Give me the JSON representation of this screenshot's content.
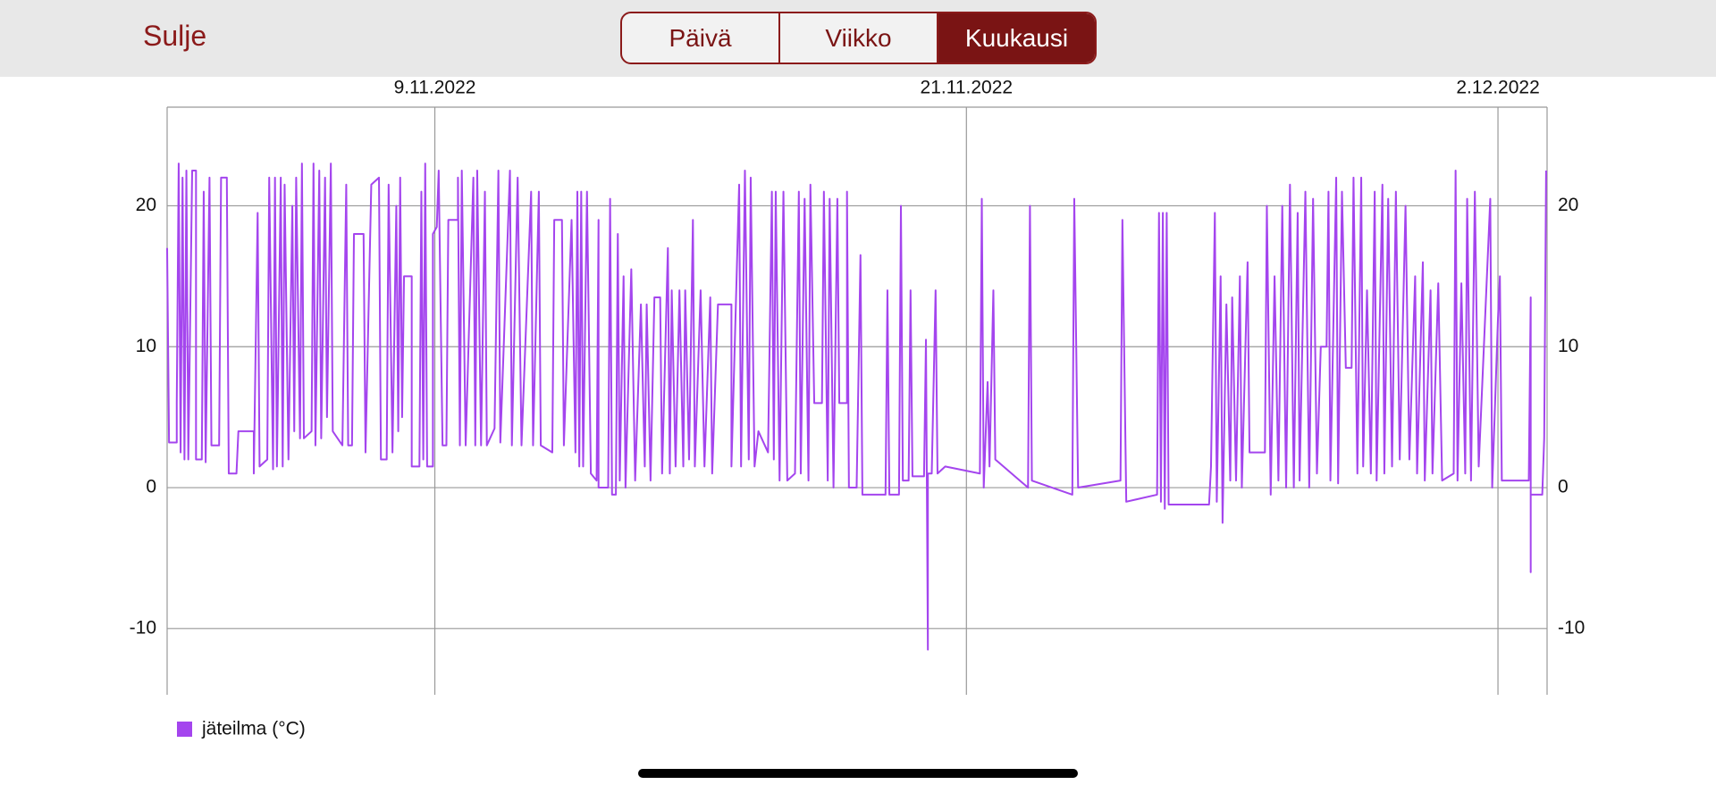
{
  "header": {
    "close": "Sulje",
    "tabs": [
      "Päivä",
      "Viikko",
      "Kuukausi"
    ],
    "selected_tab": 2
  },
  "chart_data": {
    "type": "line",
    "x": [
      "2022-11-03T17:00",
      "2022-11-03T18:00",
      "2022-11-03T22:00",
      "2022-11-03T22:00",
      "2022-11-03T23:00",
      "2022-11-04T00:00",
      "2022-11-04T01:00",
      "2022-11-04T02:00",
      "2022-11-04T03:00",
      "2022-11-04T04:00",
      "2022-11-04T06:00",
      "2022-11-04T08:00",
      "2022-11-04T08:00",
      "2022-11-04T11:00",
      "2022-11-04T12:00",
      "2022-11-04T13:00",
      "2022-11-04T15:00",
      "2022-11-04T16:00",
      "2022-11-04T20:00",
      "2022-11-04T21:00",
      "2022-11-05T00:00",
      "2022-11-05T01:00",
      "2022-11-05T05:00",
      "2022-11-05T06:00",
      "2022-11-05T14:00",
      "2022-11-05T14:00",
      "2022-11-05T16:00",
      "2022-11-05T17:00",
      "2022-11-05T21:00",
      "2022-11-05T22:00",
      "2022-11-06T00:00",
      "2022-11-06T01:00",
      "2022-11-06T02:00",
      "2022-11-06T04:00",
      "2022-11-06T05:00",
      "2022-11-06T06:00",
      "2022-11-06T08:00",
      "2022-11-06T10:00",
      "2022-11-06T11:00",
      "2022-11-06T12:00",
      "2022-11-06T14:00",
      "2022-11-06T15:00",
      "2022-11-06T16:00",
      "2022-11-06T20:00",
      "2022-11-06T21:00",
      "2022-11-06T22:00",
      "2022-11-07T00:00",
      "2022-11-07T01:00",
      "2022-11-07T03:00",
      "2022-11-07T04:00",
      "2022-11-07T06:00",
      "2022-11-07T07:00",
      "2022-11-07T12:00",
      "2022-11-07T14:00",
      "2022-11-07T15:00",
      "2022-11-07T17:00",
      "2022-11-07T18:00",
      "2022-11-07T23:00",
      "2022-11-08T00:00",
      "2022-11-08T03:00",
      "2022-11-08T07:00",
      "2022-11-08T08:00",
      "2022-11-08T11:00",
      "2022-11-08T12:00",
      "2022-11-08T14:00",
      "2022-11-08T16:00",
      "2022-11-08T17:00",
      "2022-11-08T18:00",
      "2022-11-08T19:00",
      "2022-11-08T20:00",
      "2022-11-09T00:00",
      "2022-11-09T00:00",
      "2022-11-09T04:00",
      "2022-11-09T05:00",
      "2022-11-09T06:00",
      "2022-11-09T07:00",
      "2022-11-09T08:00",
      "2022-11-09T11:00",
      "2022-11-09T11:00",
      "2022-11-09T13:00",
      "2022-11-09T14:00",
      "2022-11-09T16:00",
      "2022-11-09T18:00",
      "2022-11-09T19:00",
      "2022-11-10T00:00",
      "2022-11-10T00:00",
      "2022-11-10T01:00",
      "2022-11-10T02:00",
      "2022-11-10T04:00",
      "2022-11-10T08:00",
      "2022-11-10T09:00",
      "2022-11-10T10:00",
      "2022-11-10T12:00",
      "2022-11-10T14:00",
      "2022-11-10T15:00",
      "2022-11-10T19:00",
      "2022-11-10T21:00",
      "2022-11-10T22:00",
      "2022-11-11T03:00",
      "2022-11-11T04:00",
      "2022-11-11T07:00",
      "2022-11-11T09:00",
      "2022-11-11T14:00",
      "2022-11-11T15:00",
      "2022-11-11T18:00",
      "2022-11-11T19:00",
      "2022-11-12T01:00",
      "2022-11-12T02:00",
      "2022-11-12T06:00",
      "2022-11-12T07:00",
      "2022-11-12T11:00",
      "2022-11-12T13:00",
      "2022-11-12T14:00",
      "2022-11-12T15:00",
      "2022-11-12T16:00",
      "2022-11-12T17:00",
      "2022-11-12T19:00",
      "2022-11-12T21:00",
      "2022-11-13T00:00",
      "2022-11-13T01:00",
      "2022-11-13T01:00",
      "2022-11-13T06:00",
      "2022-11-13T07:00",
      "2022-11-13T08:00",
      "2022-11-13T10:00",
      "2022-11-13T11:00",
      "2022-11-13T12:00",
      "2022-11-13T14:00",
      "2022-11-13T15:00",
      "2022-11-13T18:00",
      "2022-11-13T20:00",
      "2022-11-13T23:00",
      "2022-11-14T01:00",
      "2022-11-14T02:00",
      "2022-11-14T04:00",
      "2022-11-14T06:00",
      "2022-11-14T09:00",
      "2022-11-14T10:00",
      "2022-11-14T13:00",
      "2022-11-14T14:00",
      "2022-11-14T15:00",
      "2022-11-14T17:00",
      "2022-11-14T19:00",
      "2022-11-14T21:00",
      "2022-11-14T22:00",
      "2022-11-15T00:00",
      "2022-11-15T02:00",
      "2022-11-15T03:00",
      "2022-11-15T06:00",
      "2022-11-15T08:00",
      "2022-11-15T11:00",
      "2022-11-15T12:00",
      "2022-11-15T15:00",
      "2022-11-15T22:00",
      "2022-11-15T22:00",
      "2022-11-16T02:00",
      "2022-11-16T03:00",
      "2022-11-16T05:00",
      "2022-11-16T07:00",
      "2022-11-16T08:00",
      "2022-11-16T10:00",
      "2022-11-16T12:00",
      "2022-11-16T17:00",
      "2022-11-16T19:00",
      "2022-11-16T20:00",
      "2022-11-16T21:00",
      "2022-11-16T23:00",
      "2022-11-17T01:00",
      "2022-11-17T03:00",
      "2022-11-17T07:00",
      "2022-11-17T09:00",
      "2022-11-17T10:00",
      "2022-11-17T12:00",
      "2022-11-17T14:00",
      "2022-11-17T15:00",
      "2022-11-17T17:00",
      "2022-11-17T21:00",
      "2022-11-17T22:00",
      "2022-11-18T00:00",
      "2022-11-18T01:00",
      "2022-11-18T03:00",
      "2022-11-18T05:00",
      "2022-11-18T06:00",
      "2022-11-18T10:00",
      "2022-11-18T10:00",
      "2022-11-18T11:00",
      "2022-11-18T15:00",
      "2022-11-18T17:00",
      "2022-11-18T18:00",
      "2022-11-19T06:00",
      "2022-11-19T07:00",
      "2022-11-19T08:00",
      "2022-11-19T13:00",
      "2022-11-19T14:00",
      "2022-11-19T15:00",
      "2022-11-19T18:00",
      "2022-11-19T19:00",
      "2022-11-19T20:00",
      "2022-11-20T02:00",
      "2022-11-20T03:00",
      "2022-11-20T04:00",
      "2022-11-20T04:00",
      "2022-11-20T06:00",
      "2022-11-20T08:00",
      "2022-11-20T09:00",
      "2022-11-20T13:00",
      "2022-11-21T07:00",
      "2022-11-21T08:00",
      "2022-11-21T09:00",
      "2022-11-21T11:00",
      "2022-11-21T12:00",
      "2022-11-21T14:00",
      "2022-11-21T15:00",
      "2022-11-22T08:00",
      "2022-11-22T09:00",
      "2022-11-22T10:00",
      "2022-11-23T07:00",
      "2022-11-23T08:00",
      "2022-11-23T10:00",
      "2022-11-24T08:00",
      "2022-11-24T09:00",
      "2022-11-24T11:00",
      "2022-11-25T03:00",
      "2022-11-25T04:00",
      "2022-11-25T05:00",
      "2022-11-25T06:00",
      "2022-11-25T07:00",
      "2022-11-25T08:00",
      "2022-11-25T09:00",
      "2022-11-26T06:00",
      "2022-11-26T07:00",
      "2022-11-26T09:00",
      "2022-11-26T10:00",
      "2022-11-26T12:00",
      "2022-11-26T13:00",
      "2022-11-26T15:00",
      "2022-11-26T17:00",
      "2022-11-26T18:00",
      "2022-11-26T20:00",
      "2022-11-26T22:00",
      "2022-11-26T23:00",
      "2022-11-27T02:00",
      "2022-11-27T03:00",
      "2022-11-27T11:00",
      "2022-11-27T12:00",
      "2022-11-27T14:00",
      "2022-11-27T16:00",
      "2022-11-27T18:00",
      "2022-11-27T20:00",
      "2022-11-27T22:00",
      "2022-11-28T00:00",
      "2022-11-28T02:00",
      "2022-11-28T04:00",
      "2022-11-28T05:00",
      "2022-11-28T08:00",
      "2022-11-28T10:00",
      "2022-11-28T12:00",
      "2022-11-28T14:00",
      "2022-11-28T16:00",
      "2022-11-28T19:00",
      "2022-11-28T20:00",
      "2022-11-28T21:00",
      "2022-11-29T00:00",
      "2022-11-29T01:00",
      "2022-11-29T03:00",
      "2022-11-29T05:00",
      "2022-11-29T08:00",
      "2022-11-29T09:00",
      "2022-11-29T11:00",
      "2022-11-29T13:00",
      "2022-11-29T14:00",
      "2022-11-29T16:00",
      "2022-11-29T18:00",
      "2022-11-29T20:00",
      "2022-11-29T21:00",
      "2022-11-30T00:00",
      "2022-11-30T01:00",
      "2022-11-30T03:00",
      "2022-11-30T05:00",
      "2022-11-30T07:00",
      "2022-11-30T09:00",
      "2022-11-30T12:00",
      "2022-11-30T14:00",
      "2022-11-30T17:00",
      "2022-11-30T18:00",
      "2022-11-30T21:00",
      "2022-11-30T22:00",
      "2022-12-01T01:00",
      "2022-12-01T02:00",
      "2022-12-01T05:00",
      "2022-12-01T07:00",
      "2022-12-01T13:00",
      "2022-12-01T14:00",
      "2022-12-01T15:00",
      "2022-12-01T17:00",
      "2022-12-01T19:00",
      "2022-12-01T20:00",
      "2022-12-01T22:00",
      "2022-12-02T00:00",
      "2022-12-02T02:00",
      "2022-12-02T08:00",
      "2022-12-02T09:00",
      "2022-12-02T12:00",
      "2022-12-02T13:00",
      "2022-12-02T14:00",
      "2022-12-03T04:00",
      "2022-12-03T05:00",
      "2022-12-03T05:00",
      "2022-12-03T05:00",
      "2022-12-03T11:00",
      "2022-12-03T12:00",
      "2022-12-03T13:00"
    ],
    "series": [
      {
        "name": "jäteilma (°C)",
        "color": "#a445ee",
        "values": [
          17,
          3.2,
          3.2,
          6,
          23,
          2.5,
          22,
          2,
          22.5,
          2,
          22.5,
          22.5,
          2,
          2,
          21,
          1.8,
          22,
          3,
          3,
          22,
          22,
          1,
          1,
          4,
          4,
          1,
          19.5,
          1.5,
          2,
          22,
          1.3,
          22,
          1.5,
          22,
          1.5,
          21.5,
          2,
          20,
          4,
          22,
          3.5,
          23,
          3.5,
          4,
          23,
          3,
          22.5,
          3.5,
          22,
          5,
          23,
          4,
          3,
          21.5,
          3,
          3,
          18,
          18,
          2.5,
          21.5,
          22,
          2,
          2,
          21.5,
          2.5,
          20,
          4,
          22,
          5,
          15,
          15,
          1.5,
          1.5,
          21,
          2,
          23,
          1.5,
          1.5,
          18,
          18.5,
          22.5,
          3,
          3,
          19,
          19,
          22,
          3,
          22.5,
          3,
          22,
          3,
          22.5,
          3,
          21,
          3,
          4.2,
          22.5,
          3.2,
          22.5,
          3,
          22,
          3,
          21,
          3,
          21,
          3,
          2.5,
          19,
          19,
          3,
          19,
          2.5,
          21,
          1.5,
          21,
          1.5,
          21,
          1,
          0.5,
          19,
          0,
          0,
          20.5,
          -0.5,
          -0.5,
          18,
          0.5,
          15,
          0,
          15.5,
          0.5,
          13,
          1.5,
          13,
          0.5,
          13.5,
          13.5,
          1,
          17,
          1,
          14,
          1.5,
          14,
          1.5,
          14,
          2,
          19,
          1.5,
          14,
          1.5,
          13.5,
          1,
          13,
          13,
          1.5,
          21.5,
          1.5,
          22.5,
          2,
          22,
          1.5,
          4,
          2.5,
          21,
          2,
          21,
          0.5,
          21,
          0.5,
          1,
          21,
          1,
          20.5,
          0.5,
          21.5,
          6,
          6,
          21,
          0.5,
          20.5,
          0,
          20.5,
          6,
          6,
          21,
          0,
          0,
          16.5,
          -0.5,
          -0.5,
          14,
          -0.5,
          -0.5,
          20,
          0.5,
          0.5,
          14,
          0.8,
          0.8,
          10.5,
          -11.5,
          1,
          1,
          14,
          1,
          1.5,
          1,
          20.5,
          0,
          7.5,
          1.5,
          14,
          2,
          0,
          20,
          0.5,
          -0.5,
          20.5,
          0,
          0.5,
          19,
          -1,
          -0.5,
          19.5,
          -1,
          19.5,
          -1.5,
          19.5,
          -1.2,
          -1.2,
          1.5,
          19.5,
          -1,
          15,
          -2.5,
          13,
          0.5,
          13.5,
          0.5,
          15,
          0,
          16,
          2.5,
          2.5,
          20,
          -0.5,
          15,
          0.5,
          20,
          0,
          21.5,
          0,
          19.5,
          0.5,
          21,
          0,
          20.5,
          1,
          10,
          10,
          21,
          0.5,
          22,
          0.3,
          21,
          8.5,
          8.5,
          22,
          1,
          22,
          1.5,
          14,
          1,
          21,
          0.5,
          21.5,
          1,
          20.5,
          1.5,
          21,
          2,
          20,
          2,
          15,
          1,
          16,
          0.5,
          14,
          1,
          14.5,
          0.5,
          1,
          22.5,
          0.5,
          14.5,
          1,
          20.5,
          0.5,
          21,
          1.5,
          20.5,
          0,
          12,
          15,
          0.5,
          0.5,
          13.5,
          -6,
          -0.5,
          -0.5,
          3.5,
          22.5
        ]
      }
    ],
    "xlim": [
      "2022-11-03T17:00",
      "2022-12-03T13:30"
    ],
    "xticks": [
      {
        "value": "2022-11-09T12:00",
        "label": "9.11.2022"
      },
      {
        "value": "2022-11-21T00:00",
        "label": "21.11.2022"
      },
      {
        "value": "2022-12-02T12:00",
        "label": "2.12.2022"
      }
    ],
    "ylim": [
      -14.7,
      27
    ],
    "yticks": [
      -10,
      0,
      10,
      20
    ],
    "grid": true,
    "right_axis": true,
    "legend": "bottom-left"
  }
}
